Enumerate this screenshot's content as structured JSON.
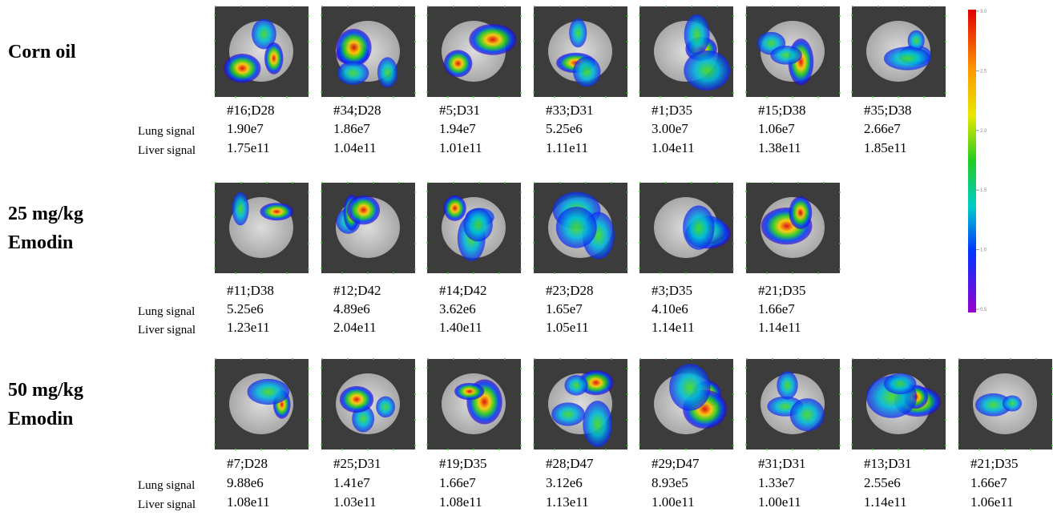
{
  "row_labels": [
    "Lung signal",
    "Liver signal"
  ],
  "groups": [
    {
      "label": [
        "Corn oil"
      ],
      "samples": [
        {
          "id": "#16;D28",
          "lung": "1.90e7",
          "liver": "1.75e11"
        },
        {
          "id": "#34;D28",
          "lung": "1.86e7",
          "liver": "1.04e11"
        },
        {
          "id": "#5;D31",
          "lung": "1.94e7",
          "liver": "1.01e11"
        },
        {
          "id": "#33;D31",
          "lung": "5.25e6",
          "liver": "1.11e11"
        },
        {
          "id": "#1;D35",
          "lung": "3.00e7",
          "liver": "1.04e11"
        },
        {
          "id": "#15;D38",
          "lung": "1.06e7",
          "liver": "1.38e11"
        },
        {
          "id": "#35;D38",
          "lung": "2.66e7",
          "liver": "1.85e11"
        }
      ]
    },
    {
      "label": [
        "25 mg/kg",
        "Emodin"
      ],
      "samples": [
        {
          "id": "#11;D38",
          "lung": "5.25e6",
          "liver": "1.23e11"
        },
        {
          "id": "#12;D42",
          "lung": "4.89e6",
          "liver": "2.04e11"
        },
        {
          "id": "#14;D42",
          "lung": "3.62e6",
          "liver": "1.40e11"
        },
        {
          "id": "#23;D28",
          "lung": "1.65e7",
          "liver": "1.05e11"
        },
        {
          "id": "#3;D35",
          "lung": "4.10e6",
          "liver": "1.14e11"
        },
        {
          "id": "#21;D35",
          "lung": "1.66e7",
          "liver": "1.14e11"
        }
      ]
    },
    {
      "label": [
        "50 mg/kg",
        "Emodin"
      ],
      "samples": [
        {
          "id": "#7;D28",
          "lung": "9.88e6",
          "liver": "1.08e11"
        },
        {
          "id": "#25;D31",
          "lung": "1.41e7",
          "liver": "1.03e11"
        },
        {
          "id": "#19;D35",
          "lung": "1.66e7",
          "liver": "1.08e11"
        },
        {
          "id": "#28;D47",
          "lung": "3.12e6",
          "liver": "1.13e11"
        },
        {
          "id": "#29;D47",
          "lung": "8.93e5",
          "liver": "1.00e11"
        },
        {
          "id": "#31;D31",
          "lung": "1.33e7",
          "liver": "1.00e11"
        },
        {
          "id": "#13;D31",
          "lung": "2.55e6",
          "liver": "1.14e11"
        },
        {
          "id": "#21;D35",
          "lung": "1.66e7",
          "liver": "1.06e11"
        }
      ]
    }
  ],
  "colorbar": {
    "ticks": [
      "3.0",
      "2.5",
      "2.0",
      "1.5",
      "1.0",
      "0.5"
    ]
  }
}
